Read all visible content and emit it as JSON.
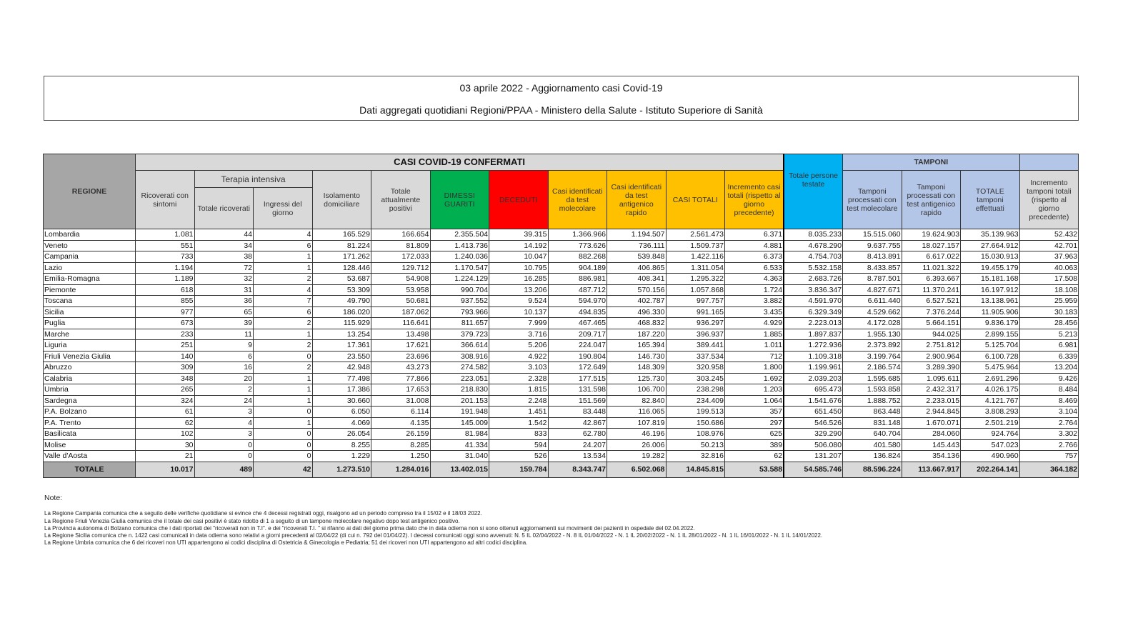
{
  "title": {
    "line1": "03 aprile 2022 - Aggiornamento casi Covid-19",
    "line2": "Dati aggregati quotidiani Regioni/PPAA - Ministero della Salute - Istituto Superiore di Sanità"
  },
  "colors": {
    "green": "#00b050",
    "red": "#ff0000",
    "yellow": "#ffc000",
    "cyan": "#00b0f0",
    "light_blue": "#b4c6e7",
    "grey": "#d9d9d9"
  },
  "header": {
    "regione": "REGIONE",
    "casi": "CASI COVID-19 CONFERMATI",
    "tamponi": "TAMPONI",
    "terapia": "Terapia intensiva",
    "cols": [
      "Ricoverati con sintomi",
      "Totale ricoverati",
      "Ingressi del giorno",
      "Isolamento domiciliare",
      "Totale attualmente positivi",
      "DIMESSI GUARITI",
      "DECEDUTI",
      "Casi identificati da test molecolare",
      "Casi identificati da test antigenico rapido",
      "CASI TOTALI",
      "Incremento casi totali (rispetto al giorno precedente)",
      "Totale persone testate",
      "Tamponi processati con test molecolare",
      "Tamponi processati con test antigenico rapido",
      "TOTALE tamponi effettuati",
      "Incremento tamponi totali (rispetto al giorno precedente)"
    ]
  },
  "rows": [
    [
      "Lombardia",
      "1.081",
      "44",
      "4",
      "165.529",
      "166.654",
      "2.355.504",
      "39.315",
      "1.366.966",
      "1.194.507",
      "2.561.473",
      "6.371",
      "8.035.233",
      "15.515.060",
      "19.624.903",
      "35.139.963",
      "52.432"
    ],
    [
      "Veneto",
      "551",
      "34",
      "6",
      "81.224",
      "81.809",
      "1.413.736",
      "14.192",
      "773.626",
      "736.111",
      "1.509.737",
      "4.881",
      "4.678.290",
      "9.637.755",
      "18.027.157",
      "27.664.912",
      "42.701"
    ],
    [
      "Campania",
      "733",
      "38",
      "1",
      "171.262",
      "172.033",
      "1.240.036",
      "10.047",
      "882.268",
      "539.848",
      "1.422.116",
      "6.373",
      "4.754.703",
      "8.413.891",
      "6.617.022",
      "15.030.913",
      "37.963"
    ],
    [
      "Lazio",
      "1.194",
      "72",
      "1",
      "128.446",
      "129.712",
      "1.170.547",
      "10.795",
      "904.189",
      "406.865",
      "1.311.054",
      "6.533",
      "5.532.158",
      "8.433.857",
      "11.021.322",
      "19.455.179",
      "40.063"
    ],
    [
      "Emilia-Romagna",
      "1.189",
      "32",
      "2",
      "53.687",
      "54.908",
      "1.224.129",
      "16.285",
      "886.981",
      "408.341",
      "1.295.322",
      "4.363",
      "2.683.726",
      "8.787.501",
      "6.393.667",
      "15.181.168",
      "17.508"
    ],
    [
      "Piemonte",
      "618",
      "31",
      "4",
      "53.309",
      "53.958",
      "990.704",
      "13.206",
      "487.712",
      "570.156",
      "1.057.868",
      "1.724",
      "3.836.347",
      "4.827.671",
      "11.370.241",
      "16.197.912",
      "18.108"
    ],
    [
      "Toscana",
      "855",
      "36",
      "7",
      "49.790",
      "50.681",
      "937.552",
      "9.524",
      "594.970",
      "402.787",
      "997.757",
      "3.882",
      "4.591.970",
      "6.611.440",
      "6.527.521",
      "13.138.961",
      "25.959"
    ],
    [
      "Sicilia",
      "977",
      "65",
      "6",
      "186.020",
      "187.062",
      "793.966",
      "10.137",
      "494.835",
      "496.330",
      "991.165",
      "3.435",
      "6.329.349",
      "4.529.662",
      "7.376.244",
      "11.905.906",
      "30.183"
    ],
    [
      "Puglia",
      "673",
      "39",
      "2",
      "115.929",
      "116.641",
      "811.657",
      "7.999",
      "467.465",
      "468.832",
      "936.297",
      "4.929",
      "2.223.013",
      "4.172.028",
      "5.664.151",
      "9.836.179",
      "28.456"
    ],
    [
      "Marche",
      "233",
      "11",
      "1",
      "13.254",
      "13.498",
      "379.723",
      "3.716",
      "209.717",
      "187.220",
      "396.937",
      "1.885",
      "1.897.837",
      "1.955.130",
      "944.025",
      "2.899.155",
      "5.213"
    ],
    [
      "Liguria",
      "251",
      "9",
      "2",
      "17.361",
      "17.621",
      "366.614",
      "5.206",
      "224.047",
      "165.394",
      "389.441",
      "1.011",
      "1.272.936",
      "2.373.892",
      "2.751.812",
      "5.125.704",
      "6.981"
    ],
    [
      "Friuli Venezia Giulia",
      "140",
      "6",
      "0",
      "23.550",
      "23.696",
      "308.916",
      "4.922",
      "190.804",
      "146.730",
      "337.534",
      "712",
      "1.109.318",
      "3.199.764",
      "2.900.964",
      "6.100.728",
      "6.339"
    ],
    [
      "Abruzzo",
      "309",
      "16",
      "2",
      "42.948",
      "43.273",
      "274.582",
      "3.103",
      "172.649",
      "148.309",
      "320.958",
      "1.800",
      "1.199.961",
      "2.186.574",
      "3.289.390",
      "5.475.964",
      "13.204"
    ],
    [
      "Calabria",
      "348",
      "20",
      "1",
      "77.498",
      "77.866",
      "223.051",
      "2.328",
      "177.515",
      "125.730",
      "303.245",
      "1.692",
      "2.039.203",
      "1.595.685",
      "1.095.611",
      "2.691.296",
      "9.426"
    ],
    [
      "Umbria",
      "265",
      "2",
      "1",
      "17.386",
      "17.653",
      "218.830",
      "1.815",
      "131.598",
      "106.700",
      "238.298",
      "1.203",
      "695.473",
      "1.593.858",
      "2.432.317",
      "4.026.175",
      "8.484"
    ],
    [
      "Sardegna",
      "324",
      "24",
      "1",
      "30.660",
      "31.008",
      "201.153",
      "2.248",
      "151.569",
      "82.840",
      "234.409",
      "1.064",
      "1.541.676",
      "1.888.752",
      "2.233.015",
      "4.121.767",
      "8.469"
    ],
    [
      "P.A. Bolzano",
      "61",
      "3",
      "0",
      "6.050",
      "6.114",
      "191.948",
      "1.451",
      "83.448",
      "116.065",
      "199.513",
      "357",
      "651.450",
      "863.448",
      "2.944.845",
      "3.808.293",
      "3.104"
    ],
    [
      "P.A. Trento",
      "62",
      "4",
      "1",
      "4.069",
      "4.135",
      "145.009",
      "1.542",
      "42.867",
      "107.819",
      "150.686",
      "297",
      "546.526",
      "831.148",
      "1.670.071",
      "2.501.219",
      "2.764"
    ],
    [
      "Basilicata",
      "102",
      "3",
      "0",
      "26.054",
      "26.159",
      "81.984",
      "833",
      "62.780",
      "46.196",
      "108.976",
      "625",
      "329.290",
      "640.704",
      "284.060",
      "924.764",
      "3.302"
    ],
    [
      "Molise",
      "30",
      "0",
      "0",
      "8.255",
      "8.285",
      "41.334",
      "594",
      "24.207",
      "26.006",
      "50.213",
      "389",
      "506.080",
      "401.580",
      "145.443",
      "547.023",
      "2.766"
    ],
    [
      "Valle d'Aosta",
      "21",
      "0",
      "0",
      "1.229",
      "1.250",
      "31.040",
      "526",
      "13.534",
      "19.282",
      "32.816",
      "62",
      "131.207",
      "136.824",
      "354.136",
      "490.960",
      "757"
    ]
  ],
  "total": [
    "TOTALE",
    "10.017",
    "489",
    "42",
    "1.273.510",
    "1.284.016",
    "13.402.015",
    "159.784",
    "8.343.747",
    "6.502.068",
    "14.845.815",
    "53.588",
    "54.585.746",
    "88.596.224",
    "113.667.917",
    "202.264.141",
    "364.182"
  ],
  "notes": {
    "heading": "Note:",
    "lines": [
      "La Regione Campania comunica che a seguito delle verifiche quotidiane si evince che 4 decessi registrati oggi, risalgono ad un periodo compreso tra il 15/02 e il 18/03 2022.",
      "La Regione Friuli Venezia Giulia comunica che il totale dei casi positivi è stato ridotto di 1 a seguito di un tampone molecolare negativo dopo test antigenico positivo.",
      "La Provincia autonoma di Bolzano comunica che i dati riportati dei \"ricoverati non in T.I\". e dei \"ricoverati T.I. \" si rifanno ai dati del giorno prima dato che in data odierna non si sono ottenuti aggiornamenti sui movimenti dei pazienti in ospedale del 02.04.2022.",
      "La Regione Sicilia comunica che n. 1422 casi comunicati in data odierna sono relativi a giorni precedenti al 02/04/22 (di cui n. 792 del 01/04/22). I decessi comunicati oggi sono avvenuti: N. 5 IL 02/04/2022 - N. 8 IL 01/04/2022 - N. 1 IL 20/02/2022 - N. 1 IL 28/01/2022 - N. 1 IL 16/01/2022 - N. 1 IL 14/01/2022.",
      "La Regione Umbria comunica che 6 dei ricoveri non UTI appartengono ai codici disciplina di Ostetricia & Ginecologia e Pediatria; 51 dei ricoveri non UTI appartengono ad altri codici disciplina."
    ]
  }
}
